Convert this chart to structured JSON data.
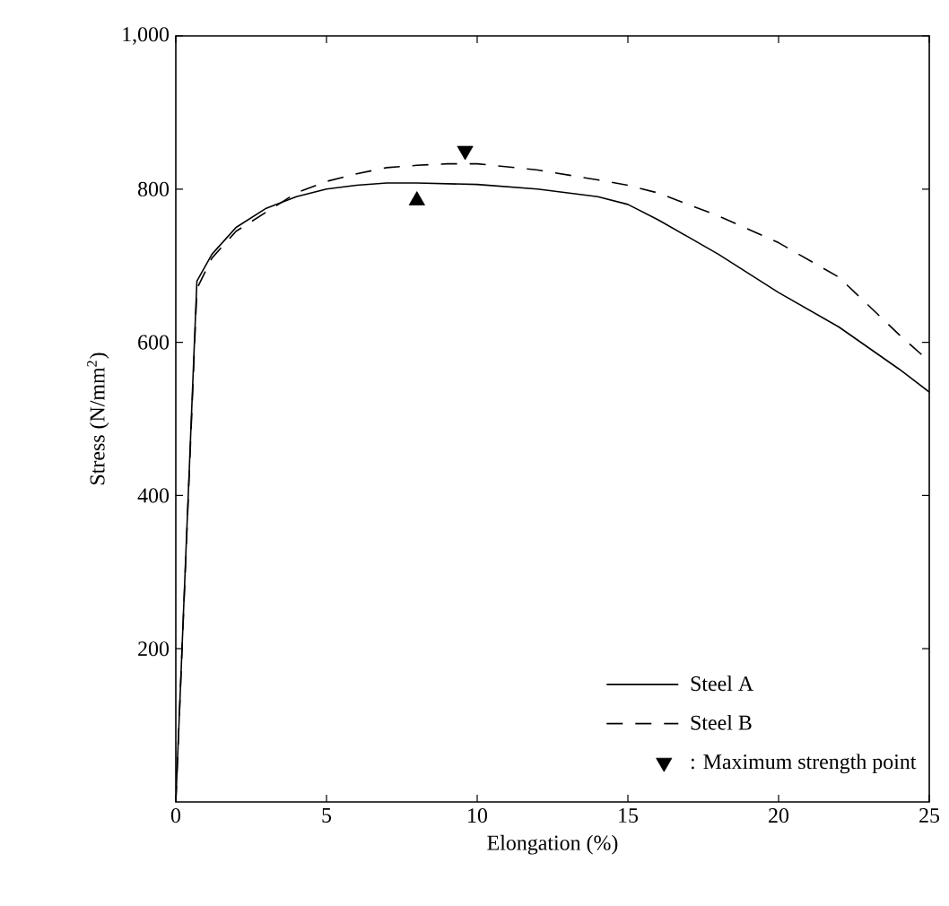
{
  "chart_data": {
    "type": "line",
    "xlabel": "Elongation (%)",
    "ylabel": "Stress (N/mm$^{2}$)",
    "xlim": [
      0,
      25
    ],
    "ylim": [
      0,
      1000
    ],
    "xticks": [
      0,
      5,
      10,
      15,
      20,
      25
    ],
    "yticks": [
      {
        "value": 200,
        "label": "200"
      },
      {
        "value": 400,
        "label": "400"
      },
      {
        "value": 600,
        "label": "600"
      },
      {
        "value": 800,
        "label": "800"
      },
      {
        "value": 1000,
        "label": "1,000"
      }
    ],
    "legend": "bottom right",
    "grid": false,
    "series": [
      {
        "name": "Steel A",
        "color": "#000000",
        "line_style": "solid",
        "x": [
          0,
          0.7,
          1.2,
          2,
          3,
          4,
          5,
          6,
          7,
          8,
          10,
          12,
          14,
          15,
          16,
          18,
          20,
          22,
          24,
          25
        ],
        "values": [
          0,
          680,
          715,
          750,
          775,
          790,
          800,
          805,
          808,
          808,
          806,
          800,
          790,
          780,
          760,
          715,
          665,
          620,
          565,
          535
        ]
      },
      {
        "name": "Steel B",
        "color": "#000000",
        "line_style": "dashed",
        "x": [
          0,
          0.7,
          1.2,
          2,
          3,
          4,
          5,
          6,
          7,
          8,
          9,
          10,
          12,
          14,
          15,
          16,
          18,
          20,
          22,
          24,
          25
        ],
        "values": [
          0,
          670,
          710,
          745,
          770,
          795,
          810,
          820,
          828,
          831,
          833,
          833,
          825,
          812,
          805,
          795,
          765,
          730,
          685,
          610,
          575
        ]
      },
      {
        "type": "scatter",
        "color": "#000000",
        "marker": "triangle",
        "x": [
          8
        ],
        "values": [
          785
        ]
      },
      {
        "type": "scatter",
        "name": ": Maximum strength point",
        "color": "#000000",
        "marker": "triangle-down",
        "x": [
          9.6
        ],
        "values": [
          850
        ]
      }
    ]
  }
}
